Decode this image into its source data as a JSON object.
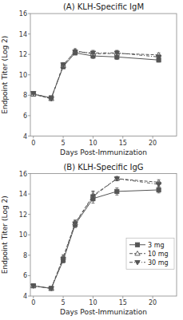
{
  "chart_data": [
    {
      "type": "line",
      "title": "(A)  KLH-Specific IgM",
      "x_label": "Days Post-Immunization",
      "y_label": "Endpoint Titer (Log 2)",
      "x": [
        0,
        3,
        5,
        7,
        10,
        14,
        21
      ],
      "series": [
        {
          "name": " 3 mg",
          "color": "#555555",
          "marker": "square",
          "line_style": "solid",
          "values": [
            8.1,
            7.75,
            10.8,
            12.15,
            11.85,
            11.75,
            11.45
          ],
          "errors": [
            0.1,
            0.12,
            0.2,
            0.2,
            0.25,
            0.25,
            0.2
          ]
        },
        {
          "name": " 10 mg",
          "color": "#555555",
          "marker": "triangle-up-open",
          "line_style": "dashed",
          "values": [
            8.1,
            7.65,
            10.9,
            12.35,
            12.05,
            12.1,
            11.95
          ],
          "errors": [
            0.1,
            0.12,
            0.2,
            0.2,
            0.25,
            0.25,
            0.2
          ]
        },
        {
          "name": " 30 mg",
          "color": "#555555",
          "marker": "triangle-down",
          "line_style": "dashdot",
          "values": [
            8.2,
            7.65,
            11.0,
            12.25,
            12.15,
            12.15,
            11.75
          ],
          "errors": [
            0.1,
            0.12,
            0.2,
            0.2,
            0.25,
            0.25,
            0.2
          ]
        }
      ],
      "xlim": [
        -0.5,
        24
      ],
      "xticks": [
        0,
        5,
        10,
        15,
        20
      ],
      "ylim": [
        4,
        16
      ],
      "yticks": [
        4,
        6,
        8,
        10,
        12,
        14,
        16
      ],
      "grid": false
    },
    {
      "type": "line",
      "title": "(B)  KLH-Specific IgG",
      "x_label": "Days Post-Immunization",
      "y_label": "Endpoint Titer (Log 2)",
      "x": [
        0,
        3,
        5,
        7,
        10,
        14,
        21
      ],
      "series": [
        {
          "name": " 3 mg",
          "color": "#555555",
          "marker": "square",
          "line_style": "solid",
          "values": [
            5.0,
            4.75,
            7.5,
            11.0,
            13.55,
            14.25,
            14.4
          ],
          "errors": [
            0.1,
            0.1,
            0.25,
            0.3,
            0.45,
            0.35,
            0.3
          ]
        },
        {
          "name": " 10 mg",
          "color": "#555555",
          "marker": "triangle-up-open",
          "line_style": "dashed",
          "values": [
            5.0,
            4.75,
            7.8,
            11.15,
            13.85,
            15.5,
            15.15
          ],
          "errors": [
            0.1,
            0.1,
            0.25,
            0.3,
            0.45,
            0.2,
            0.25
          ]
        },
        {
          "name": " 30 mg",
          "color": "#555555",
          "marker": "triangle-down",
          "line_style": "dashdot",
          "values": [
            5.0,
            4.75,
            7.65,
            11.1,
            13.75,
            15.5,
            14.95
          ],
          "errors": [
            0.1,
            0.1,
            0.25,
            0.3,
            0.45,
            0.2,
            0.25
          ]
        }
      ],
      "xlim": [
        -0.5,
        24
      ],
      "xticks": [
        0,
        5,
        10,
        15,
        20
      ],
      "ylim": [
        4,
        16
      ],
      "yticks": [
        4,
        6,
        8,
        10,
        12,
        14,
        16
      ],
      "grid": false,
      "legend": "lower right"
    }
  ]
}
